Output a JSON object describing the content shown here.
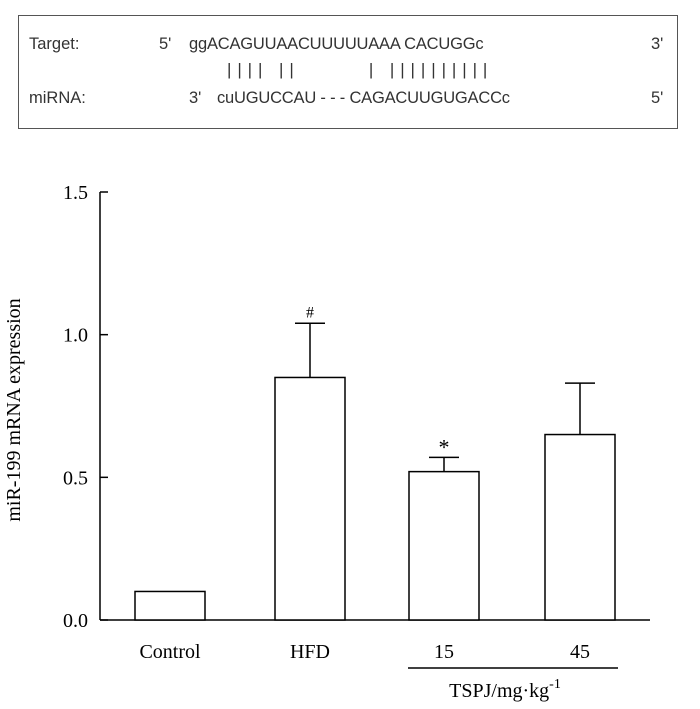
{
  "alignment": {
    "target_label": "Target:",
    "target_5": "5'",
    "target_seq": "ggACAGUUAACUUUUUAAA CACUGGc",
    "target_3": "3'",
    "pair_marks": "| | | |   | |              |   | | | | | | | | | |",
    "mirna_label": "miRNA:",
    "mirna_3": "3'",
    "mirna_seq": "cuUGUCCAU - - - CAGACUUGUGACCc",
    "mirna_5": "5'"
  },
  "chart_data": {
    "type": "bar",
    "categories": [
      "Control",
      "HFD",
      "15",
      "45"
    ],
    "values": [
      0.1,
      0.85,
      0.52,
      0.65
    ],
    "errors": [
      0.0,
      0.19,
      0.05,
      0.18
    ],
    "annotations": [
      "",
      "#",
      "*",
      ""
    ],
    "ylabel": "miR-199 mRNA expression",
    "ylim": [
      0,
      1.5
    ],
    "yticks": [
      "0.0",
      "0.5",
      "1.0",
      "1.5"
    ],
    "ytick_values": [
      0,
      0.5,
      1.0,
      1.5
    ],
    "group_label": "TSPJ/mg·kg",
    "group_label_sup": "-1",
    "grid": false
  }
}
